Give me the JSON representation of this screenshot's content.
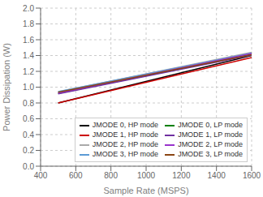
{
  "chart_data": {
    "type": "line",
    "x_label": "Sample Rate (MSPS)",
    "y_label": "Power Dissipation (W)",
    "x": [
      500,
      1600
    ],
    "xlim": [
      400,
      1600
    ],
    "ylim": [
      0,
      2
    ],
    "xticks": [
      400,
      600,
      800,
      1000,
      1200,
      1400,
      1600
    ],
    "yticks": [
      {
        "value": 0,
        "label": "0.0"
      },
      0.2,
      0.4,
      0.6,
      0.8,
      {
        "value": 1.0,
        "label": "1.0"
      },
      1.2,
      1.4,
      1.6,
      1.8,
      {
        "value": 2.0,
        "label": "2.0"
      }
    ],
    "grid": true,
    "legend": "lower right",
    "series": [
      {
        "name": "JMODE 0, HP mode",
        "color": "#000000",
        "values": [
          0.8,
          1.4
        ]
      },
      {
        "name": "JMODE 1, HP mode",
        "color": "#cc0000",
        "values": [
          0.8,
          1.375
        ]
      },
      {
        "name": "JMODE 2, HP mode",
        "color": "#aaaaaa",
        "values": [
          0.94,
          1.44
        ]
      },
      {
        "name": "JMODE 3, HP mode",
        "color": "#5b9bd5",
        "values": [
          0.945,
          1.43
        ]
      },
      {
        "name": "JMODE 0, LP mode",
        "color": "#008000",
        "values": [
          0.92,
          1.415
        ]
      },
      {
        "name": "JMODE 1, LP mode",
        "color": "#7030a0",
        "values": [
          0.915,
          1.405
        ]
      },
      {
        "name": "JMODE 2, LP mode",
        "color": "#9933cc",
        "values": [
          0.925,
          1.425
        ]
      },
      {
        "name": "JMODE 3, LP mode",
        "color": "#8B4513",
        "values": [
          0.935,
          1.41
        ]
      }
    ]
  }
}
